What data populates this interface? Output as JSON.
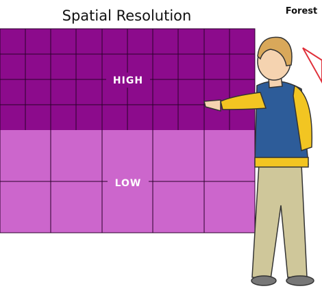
{
  "header": {
    "title": "Spatial Resolution",
    "side_label": "Forest"
  },
  "grid": {
    "high_label": "HIGH",
    "low_label": "LOW"
  }
}
